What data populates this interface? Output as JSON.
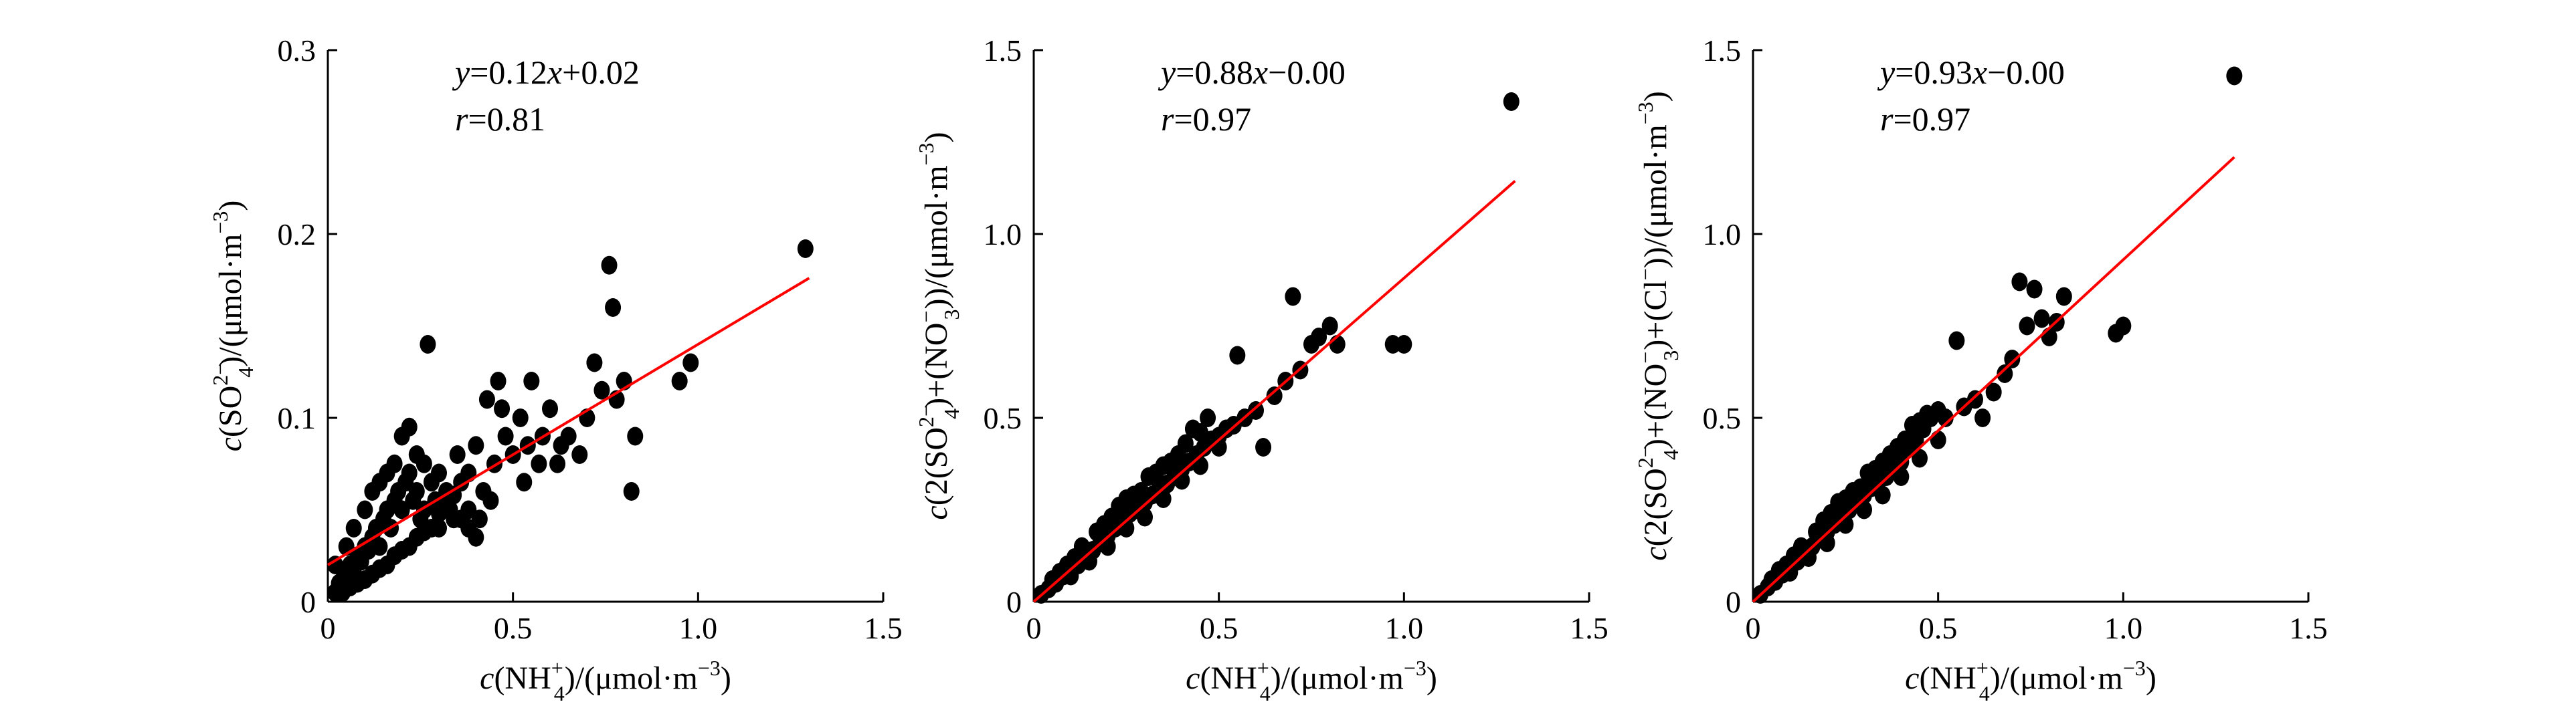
{
  "chart_data": [
    {
      "type": "scatter",
      "xlabel": "c(NH4+)/(μmol·m−3)",
      "xlabel_parts": {
        "pre": "c",
        "base": "(NH",
        "sub": "4",
        "sup": "+",
        "post": ")/(μmol·m",
        "unit_sup": "−3",
        "end": ")"
      },
      "ylabel": "c(SO42−)/(μmol·m−3)",
      "ylabel_parts": {
        "pre": "c",
        "base": "(SO",
        "sub": "4",
        "sup": "2−",
        "post": ")/(μmol·m",
        "unit_sup": "−3",
        "end": ")"
      },
      "xlim": [
        0,
        1.5
      ],
      "ylim": [
        0,
        0.3
      ],
      "xticks": [
        "0",
        "0.5",
        "1.0",
        "1.5"
      ],
      "yticks": [
        "0",
        "0.1",
        "0.2",
        "0.3"
      ],
      "ytick_values": [
        0,
        0.1,
        0.2,
        0.3
      ],
      "equation": "y=0.12x+0.02",
      "r_text": "r=0.81",
      "fit": {
        "slope": 0.12,
        "intercept": 0.02,
        "x_range": [
          0,
          1.3
        ]
      },
      "points": [
        [
          0.02,
          0.005
        ],
        [
          0.03,
          0.01
        ],
        [
          0.04,
          0.012
        ],
        [
          0.05,
          0.015
        ],
        [
          0.06,
          0.02
        ],
        [
          0.07,
          0.018
        ],
        [
          0.08,
          0.025
        ],
        [
          0.09,
          0.022
        ],
        [
          0.1,
          0.03
        ],
        [
          0.11,
          0.028
        ],
        [
          0.12,
          0.035
        ],
        [
          0.13,
          0.04
        ],
        [
          0.14,
          0.03
        ],
        [
          0.15,
          0.045
        ],
        [
          0.16,
          0.05
        ],
        [
          0.17,
          0.04
        ],
        [
          0.18,
          0.055
        ],
        [
          0.19,
          0.06
        ],
        [
          0.2,
          0.05
        ],
        [
          0.21,
          0.065
        ],
        [
          0.22,
          0.07
        ],
        [
          0.23,
          0.055
        ],
        [
          0.24,
          0.06
        ],
        [
          0.25,
          0.045
        ],
        [
          0.26,
          0.05
        ],
        [
          0.27,
          0.14
        ],
        [
          0.28,
          0.065
        ],
        [
          0.29,
          0.055
        ],
        [
          0.3,
          0.07
        ],
        [
          0.32,
          0.06
        ],
        [
          0.33,
          0.05
        ],
        [
          0.35,
          0.08
        ],
        [
          0.36,
          0.065
        ],
        [
          0.38,
          0.07
        ],
        [
          0.4,
          0.085
        ],
        [
          0.42,
          0.06
        ],
        [
          0.44,
          0.055
        ],
        [
          0.45,
          0.075
        ],
        [
          0.46,
          0.12
        ],
        [
          0.48,
          0.09
        ],
        [
          0.5,
          0.08
        ],
        [
          0.52,
          0.1
        ],
        [
          0.54,
          0.085
        ],
        [
          0.55,
          0.12
        ],
        [
          0.58,
          0.09
        ],
        [
          0.6,
          0.105
        ],
        [
          0.62,
          0.075
        ],
        [
          0.65,
          0.09
        ],
        [
          0.68,
          0.08
        ],
        [
          0.7,
          0.1
        ],
        [
          0.72,
          0.13
        ],
        [
          0.74,
          0.115
        ],
        [
          0.76,
          0.183
        ],
        [
          0.77,
          0.16
        ],
        [
          0.78,
          0.11
        ],
        [
          0.8,
          0.12
        ],
        [
          0.82,
          0.06
        ],
        [
          0.83,
          0.09
        ],
        [
          0.95,
          0.12
        ],
        [
          0.98,
          0.13
        ],
        [
          1.29,
          0.192
        ],
        [
          0.05,
          0.03
        ],
        [
          0.07,
          0.04
        ],
        [
          0.1,
          0.05
        ],
        [
          0.12,
          0.06
        ],
        [
          0.14,
          0.065
        ],
        [
          0.16,
          0.07
        ],
        [
          0.18,
          0.075
        ],
        [
          0.2,
          0.09
        ],
        [
          0.22,
          0.095
        ],
        [
          0.24,
          0.08
        ],
        [
          0.26,
          0.075
        ],
        [
          0.3,
          0.04
        ],
        [
          0.34,
          0.045
        ],
        [
          0.38,
          0.05
        ],
        [
          0.41,
          0.045
        ],
        [
          0.43,
          0.11
        ],
        [
          0.47,
          0.105
        ],
        [
          0.53,
          0.065
        ],
        [
          0.57,
          0.075
        ],
        [
          0.63,
          0.085
        ],
        [
          0.02,
          0.02
        ],
        [
          0.04,
          0.005
        ],
        [
          0.06,
          0.008
        ],
        [
          0.08,
          0.01
        ],
        [
          0.1,
          0.012
        ],
        [
          0.12,
          0.015
        ],
        [
          0.14,
          0.018
        ],
        [
          0.16,
          0.02
        ],
        [
          0.18,
          0.025
        ],
        [
          0.2,
          0.028
        ],
        [
          0.22,
          0.03
        ],
        [
          0.24,
          0.035
        ],
        [
          0.26,
          0.038
        ],
        [
          0.28,
          0.04
        ],
        [
          0.3,
          0.048
        ],
        [
          0.32,
          0.052
        ],
        [
          0.34,
          0.058
        ],
        [
          0.36,
          0.045
        ],
        [
          0.38,
          0.04
        ],
        [
          0.4,
          0.035
        ]
      ]
    },
    {
      "type": "scatter",
      "xlabel": "c(NH4+)/(μmol·m−3)",
      "xlabel_parts": {
        "pre": "c",
        "base": "(NH",
        "sub": "4",
        "sup": "+",
        "post": ")/(μmol·m",
        "unit_sup": "−3",
        "end": ")"
      },
      "ylabel": "c(2(SO42−)+(NO3−))/(μmol·m−3)",
      "ylabel_parts": {
        "pre": "c",
        "base": "(2(SO",
        "sub": "4",
        "sup": "2−",
        "mid": ")+(NO",
        "sub2": "3",
        "sup2": "−",
        "post": "))/(μmol·m",
        "unit_sup": "−3",
        "end": ")"
      },
      "xlim": [
        0,
        1.5
      ],
      "ylim": [
        0,
        1.5
      ],
      "xticks": [
        "0",
        "0.5",
        "1.0",
        "1.5"
      ],
      "yticks": [
        "0",
        "0.5",
        "1.0",
        "1.5"
      ],
      "ytick_values": [
        0,
        0.5,
        1.0,
        1.5
      ],
      "equation": "y=0.88x−0.00",
      "r_text": "r=0.97",
      "fit": {
        "slope": 0.88,
        "intercept": 0.0,
        "x_range": [
          0,
          1.3
        ]
      },
      "points": [
        [
          0.02,
          0.02
        ],
        [
          0.04,
          0.035
        ],
        [
          0.06,
          0.05
        ],
        [
          0.08,
          0.07
        ],
        [
          0.1,
          0.09
        ],
        [
          0.12,
          0.1
        ],
        [
          0.14,
          0.12
        ],
        [
          0.16,
          0.14
        ],
        [
          0.18,
          0.16
        ],
        [
          0.2,
          0.18
        ],
        [
          0.22,
          0.2
        ],
        [
          0.24,
          0.22
        ],
        [
          0.26,
          0.24
        ],
        [
          0.28,
          0.25
        ],
        [
          0.3,
          0.27
        ],
        [
          0.32,
          0.29
        ],
        [
          0.34,
          0.31
        ],
        [
          0.36,
          0.32
        ],
        [
          0.38,
          0.34
        ],
        [
          0.4,
          0.36
        ],
        [
          0.42,
          0.38
        ],
        [
          0.44,
          0.4
        ],
        [
          0.46,
          0.42
        ],
        [
          0.48,
          0.44
        ],
        [
          0.5,
          0.45
        ],
        [
          0.52,
          0.47
        ],
        [
          0.54,
          0.48
        ],
        [
          0.55,
          0.67
        ],
        [
          0.57,
          0.5
        ],
        [
          0.6,
          0.52
        ],
        [
          0.62,
          0.42
        ],
        [
          0.65,
          0.56
        ],
        [
          0.68,
          0.6
        ],
        [
          0.7,
          0.83
        ],
        [
          0.72,
          0.63
        ],
        [
          0.75,
          0.7
        ],
        [
          0.77,
          0.72
        ],
        [
          0.8,
          0.75
        ],
        [
          0.82,
          0.7
        ],
        [
          0.97,
          0.7
        ],
        [
          1.0,
          0.7
        ],
        [
          1.29,
          1.36
        ],
        [
          0.05,
          0.06
        ],
        [
          0.09,
          0.1
        ],
        [
          0.13,
          0.15
        ],
        [
          0.17,
          0.19
        ],
        [
          0.21,
          0.23
        ],
        [
          0.25,
          0.28
        ],
        [
          0.29,
          0.3
        ],
        [
          0.33,
          0.35
        ],
        [
          0.37,
          0.38
        ],
        [
          0.41,
          0.43
        ],
        [
          0.45,
          0.46
        ],
        [
          0.1,
          0.07
        ],
        [
          0.15,
          0.11
        ],
        [
          0.2,
          0.15
        ],
        [
          0.25,
          0.2
        ],
        [
          0.3,
          0.23
        ],
        [
          0.35,
          0.28
        ],
        [
          0.4,
          0.33
        ],
        [
          0.45,
          0.37
        ],
        [
          0.5,
          0.42
        ],
        [
          0.07,
          0.08
        ],
        [
          0.11,
          0.12
        ],
        [
          0.19,
          0.21
        ],
        [
          0.23,
          0.26
        ],
        [
          0.27,
          0.29
        ],
        [
          0.31,
          0.34
        ],
        [
          0.35,
          0.37
        ],
        [
          0.39,
          0.4
        ],
        [
          0.43,
          0.47
        ],
        [
          0.47,
          0.5
        ]
      ]
    },
    {
      "type": "scatter",
      "xlabel": "c(NH4+)/(μmol·m−3)",
      "xlabel_parts": {
        "pre": "c",
        "base": "(NH",
        "sub": "4",
        "sup": "+",
        "post": ")/(μmol·m",
        "unit_sup": "−3",
        "end": ")"
      },
      "ylabel": "c(2(SO42−)+(NO3−)+(Cl−))/(μmol·m−3)",
      "ylabel_parts": {
        "pre": "c",
        "base": "(2(SO",
        "sub": "4",
        "sup": "2−",
        "mid": ")+(NO",
        "sub2": "3",
        "sup2": "−",
        "mid2": ")+(Cl",
        "sup3": "−",
        "post": "))/(μmol·m",
        "unit_sup": "−3",
        "end": ")"
      },
      "xlim": [
        0,
        1.5
      ],
      "ylim": [
        0,
        1.5
      ],
      "xticks": [
        "0",
        "0.5",
        "1.0",
        "1.5"
      ],
      "yticks": [
        "0",
        "0.5",
        "1.0",
        "1.5"
      ],
      "ytick_values": [
        0,
        0.5,
        1.0,
        1.5
      ],
      "equation": "y=0.93x−0.00",
      "r_text": "r=0.97",
      "fit": {
        "slope": 0.93,
        "intercept": 0.0,
        "x_range": [
          0,
          1.3
        ]
      },
      "points": [
        [
          0.02,
          0.02
        ],
        [
          0.04,
          0.04
        ],
        [
          0.06,
          0.055
        ],
        [
          0.08,
          0.075
        ],
        [
          0.1,
          0.095
        ],
        [
          0.12,
          0.11
        ],
        [
          0.14,
          0.13
        ],
        [
          0.16,
          0.15
        ],
        [
          0.18,
          0.17
        ],
        [
          0.2,
          0.19
        ],
        [
          0.22,
          0.21
        ],
        [
          0.24,
          0.23
        ],
        [
          0.26,
          0.25
        ],
        [
          0.28,
          0.27
        ],
        [
          0.3,
          0.29
        ],
        [
          0.32,
          0.31
        ],
        [
          0.34,
          0.33
        ],
        [
          0.36,
          0.34
        ],
        [
          0.38,
          0.36
        ],
        [
          0.4,
          0.38
        ],
        [
          0.42,
          0.42
        ],
        [
          0.44,
          0.44
        ],
        [
          0.46,
          0.47
        ],
        [
          0.48,
          0.5
        ],
        [
          0.5,
          0.52
        ],
        [
          0.52,
          0.5
        ],
        [
          0.55,
          0.71
        ],
        [
          0.57,
          0.53
        ],
        [
          0.6,
          0.55
        ],
        [
          0.62,
          0.5
        ],
        [
          0.65,
          0.57
        ],
        [
          0.68,
          0.62
        ],
        [
          0.7,
          0.66
        ],
        [
          0.72,
          0.87
        ],
        [
          0.74,
          0.75
        ],
        [
          0.76,
          0.85
        ],
        [
          0.78,
          0.77
        ],
        [
          0.8,
          0.72
        ],
        [
          0.82,
          0.76
        ],
        [
          0.84,
          0.83
        ],
        [
          0.98,
          0.73
        ],
        [
          1.0,
          0.75
        ],
        [
          1.3,
          1.43
        ],
        [
          0.05,
          0.06
        ],
        [
          0.09,
          0.1
        ],
        [
          0.13,
          0.15
        ],
        [
          0.17,
          0.19
        ],
        [
          0.21,
          0.24
        ],
        [
          0.25,
          0.28
        ],
        [
          0.29,
          0.31
        ],
        [
          0.33,
          0.36
        ],
        [
          0.37,
          0.4
        ],
        [
          0.41,
          0.44
        ],
        [
          0.45,
          0.49
        ],
        [
          0.1,
          0.08
        ],
        [
          0.15,
          0.12
        ],
        [
          0.2,
          0.16
        ],
        [
          0.25,
          0.21
        ],
        [
          0.3,
          0.25
        ],
        [
          0.35,
          0.29
        ],
        [
          0.4,
          0.34
        ],
        [
          0.45,
          0.39
        ],
        [
          0.5,
          0.44
        ],
        [
          0.07,
          0.085
        ],
        [
          0.11,
          0.125
        ],
        [
          0.19,
          0.22
        ],
        [
          0.23,
          0.27
        ],
        [
          0.27,
          0.3
        ],
        [
          0.31,
          0.35
        ],
        [
          0.35,
          0.38
        ],
        [
          0.39,
          0.42
        ],
        [
          0.43,
          0.48
        ],
        [
          0.47,
          0.51
        ]
      ]
    }
  ]
}
